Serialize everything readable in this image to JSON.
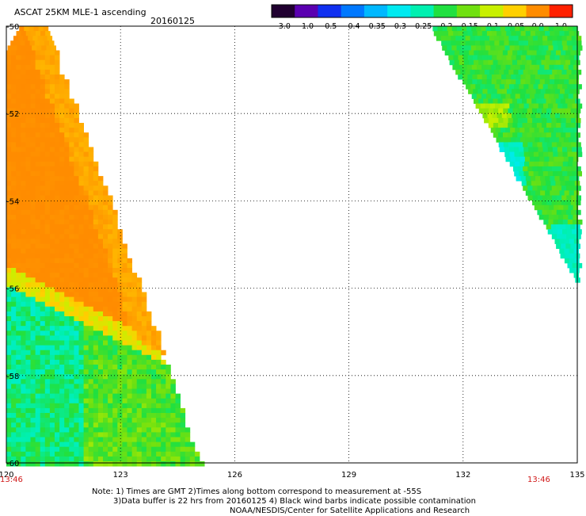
{
  "title": "ASCAT 25KM MLE-1 ascending",
  "date": "20160125",
  "colorbar": {
    "labels": [
      "-3.0",
      "-1.0",
      "-0.5",
      "-0.4",
      "-0.35",
      "-0.3",
      "-0.25",
      "-0.2",
      "-0.15",
      "-0.1",
      "-0.05",
      "0.0",
      "1.0"
    ],
    "colors": [
      "#200030",
      "#5a00b0",
      "#1030f0",
      "#0078ff",
      "#00b8ff",
      "#00eaf0",
      "#00f0b0",
      "#20e040",
      "#70e010",
      "#c8f000",
      "#ffd000",
      "#ff8c00",
      "#ff2000"
    ]
  },
  "map": {
    "lon_ticks": [
      "120",
      "123",
      "126",
      "129",
      "132",
      "135"
    ],
    "lat_ticks": [
      "-50",
      "-52",
      "-54",
      "-56",
      "-58",
      "-60"
    ],
    "lon_range": [
      120,
      135
    ],
    "lat_range": [
      -50,
      -60
    ]
  },
  "times": {
    "left": "13:46",
    "right": "13:46"
  },
  "note": {
    "line1": "Note: 1) Times are GMT 2)Times along bottom correspond to measurement at -55S",
    "line2": "3)Data buffer is 22 hrs from 20160125 4) Black wind barbs indicate possible contamination",
    "line3": "NOAA/NESDIS/Center for Satellite Applications and Research"
  }
}
